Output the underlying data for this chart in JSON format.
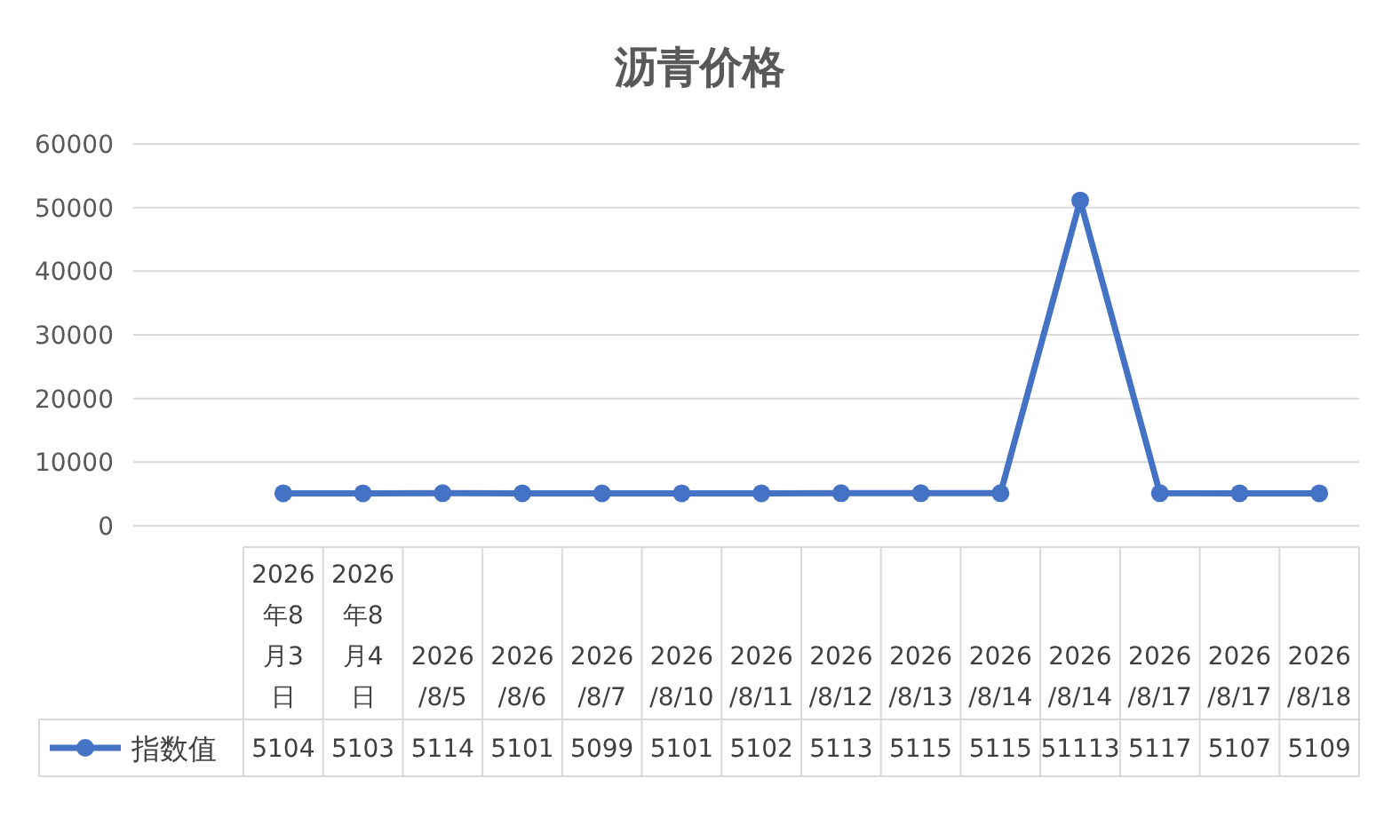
{
  "chart_data": {
    "type": "line",
    "title": "沥青价格",
    "categories": [
      "2026年8月3日",
      "2026年8月4日",
      "2026/8/5",
      "2026/8/6",
      "2026/8/7",
      "2026/8/10",
      "2026/8/11",
      "2026/8/12",
      "2026/8/13",
      "2026/8/14",
      "2026/8/14",
      "2026/8/17",
      "2026/8/17",
      "2026/8/18"
    ],
    "series": [
      {
        "name": "指数值",
        "color": "#4472c4",
        "values": [
          5104,
          5103,
          5114,
          5101,
          5099,
          5101,
          5102,
          5113,
          5115,
          5115,
          51113,
          5117,
          5107,
          5109
        ]
      }
    ],
    "ylim": [
      0,
      60000
    ],
    "yticks": [
      0,
      10000,
      20000,
      30000,
      40000,
      50000,
      60000
    ],
    "grid": "y",
    "legend": "bottom",
    "marker": "circle",
    "line_style": "solid",
    "data_labels": true
  }
}
